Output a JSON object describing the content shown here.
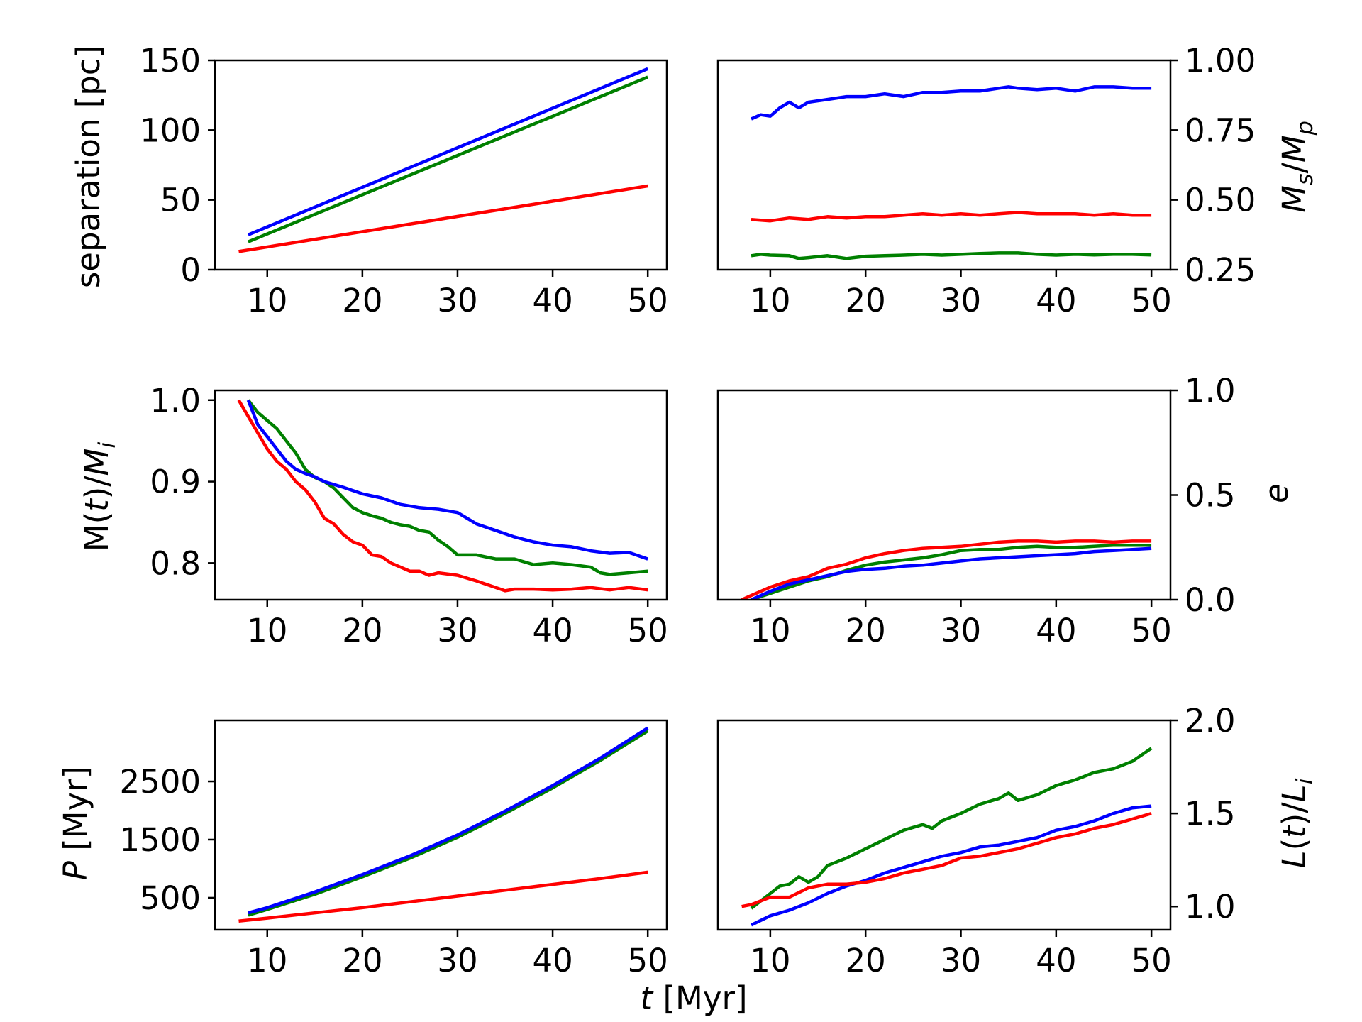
{
  "chart_data": [
    {
      "id": "separation",
      "type": "line",
      "ylabel": "separation [pc]",
      "ylabel_side": "left",
      "xlim": [
        4.5,
        52
      ],
      "ylim": [
        0,
        150
      ],
      "xticks": [
        10,
        20,
        30,
        40,
        50
      ],
      "xtick_labels": [
        "10",
        "20",
        "30",
        "40",
        "50"
      ],
      "yticks": [
        0,
        50,
        100,
        150
      ],
      "ytick_labels": [
        "0",
        "50",
        "100",
        "150"
      ],
      "series": [
        {
          "name": "red",
          "color": "#ff0000",
          "x": [
            7,
            50
          ],
          "y": [
            13,
            60
          ]
        },
        {
          "name": "green",
          "color": "#008000",
          "x": [
            8,
            50
          ],
          "y": [
            20,
            138
          ]
        },
        {
          "name": "blue",
          "color": "#0000ff",
          "x": [
            8,
            50
          ],
          "y": [
            25,
            144
          ]
        }
      ]
    },
    {
      "id": "mass-ratio",
      "type": "line",
      "ylabel": "M_s/M_p",
      "ylabel_side": "right",
      "xlim": [
        4.5,
        52
      ],
      "ylim": [
        0.25,
        1.0
      ],
      "xticks": [
        10,
        20,
        30,
        40,
        50
      ],
      "xtick_labels": [
        "10",
        "20",
        "30",
        "40",
        "50"
      ],
      "yticks": [
        0.25,
        0.5,
        0.75,
        1.0
      ],
      "ytick_labels": [
        "0.25",
        "0.50",
        "0.75",
        "1.00"
      ],
      "series": [
        {
          "name": "blue",
          "color": "#0000ff",
          "x": [
            8,
            9,
            10,
            11,
            12,
            13,
            14,
            16,
            18,
            20,
            22,
            24,
            26,
            28,
            30,
            32,
            34,
            35,
            36,
            38,
            40,
            42,
            44,
            46,
            48,
            50
          ],
          "y": [
            0.79,
            0.805,
            0.8,
            0.83,
            0.85,
            0.83,
            0.85,
            0.86,
            0.87,
            0.87,
            0.88,
            0.87,
            0.885,
            0.885,
            0.89,
            0.89,
            0.9,
            0.905,
            0.9,
            0.895,
            0.9,
            0.89,
            0.905,
            0.905,
            0.9,
            0.9
          ]
        },
        {
          "name": "red",
          "color": "#ff0000",
          "x": [
            8,
            10,
            12,
            14,
            16,
            18,
            20,
            22,
            24,
            26,
            28,
            30,
            32,
            34,
            36,
            38,
            40,
            42,
            44,
            46,
            48,
            50
          ],
          "y": [
            0.43,
            0.425,
            0.435,
            0.43,
            0.44,
            0.435,
            0.44,
            0.44,
            0.445,
            0.45,
            0.445,
            0.45,
            0.445,
            0.45,
            0.455,
            0.45,
            0.45,
            0.45,
            0.445,
            0.45,
            0.445,
            0.445
          ]
        },
        {
          "name": "green",
          "color": "#008000",
          "x": [
            8,
            9,
            10,
            12,
            13,
            14,
            16,
            18,
            20,
            22,
            24,
            26,
            28,
            30,
            32,
            34,
            36,
            38,
            40,
            42,
            44,
            46,
            48,
            50
          ],
          "y": [
            0.3,
            0.305,
            0.302,
            0.3,
            0.29,
            0.293,
            0.3,
            0.29,
            0.298,
            0.3,
            0.302,
            0.305,
            0.302,
            0.305,
            0.308,
            0.31,
            0.31,
            0.305,
            0.302,
            0.305,
            0.303,
            0.305,
            0.305,
            0.303
          ]
        }
      ]
    },
    {
      "id": "mass-loss",
      "type": "line",
      "ylabel": "M(t)/M_i",
      "ylabel_side": "left",
      "xlim": [
        4.5,
        52
      ],
      "ylim": [
        0.755,
        1.012
      ],
      "xticks": [
        10,
        20,
        30,
        40,
        50
      ],
      "xtick_labels": [
        "10",
        "20",
        "30",
        "40",
        "50"
      ],
      "yticks": [
        0.8,
        0.9,
        1.0
      ],
      "ytick_labels": [
        "0.8",
        "0.9",
        "1.0"
      ],
      "series": [
        {
          "name": "red",
          "color": "#ff0000",
          "x": [
            7,
            8,
            9,
            10,
            11,
            12,
            13,
            14,
            15,
            16,
            17,
            18,
            19,
            20,
            21,
            22,
            23,
            24,
            25,
            26,
            27,
            28,
            30,
            32,
            34,
            35,
            36,
            38,
            40,
            42,
            44,
            46,
            48,
            50
          ],
          "y": [
            1.0,
            0.98,
            0.96,
            0.94,
            0.925,
            0.915,
            0.9,
            0.89,
            0.875,
            0.855,
            0.848,
            0.835,
            0.826,
            0.822,
            0.81,
            0.808,
            0.8,
            0.795,
            0.79,
            0.79,
            0.785,
            0.788,
            0.785,
            0.778,
            0.77,
            0.766,
            0.768,
            0.768,
            0.767,
            0.768,
            0.77,
            0.767,
            0.77,
            0.767
          ]
        },
        {
          "name": "green",
          "color": "#008000",
          "x": [
            8,
            9,
            10,
            11,
            12,
            13,
            14,
            15,
            16,
            17,
            18,
            19,
            20,
            21,
            22,
            23,
            24,
            25,
            26,
            27,
            28,
            29,
            30,
            32,
            34,
            36,
            38,
            40,
            42,
            44,
            45,
            46,
            48,
            50
          ],
          "y": [
            1.0,
            0.985,
            0.975,
            0.965,
            0.95,
            0.935,
            0.915,
            0.905,
            0.9,
            0.892,
            0.88,
            0.868,
            0.862,
            0.858,
            0.855,
            0.85,
            0.847,
            0.845,
            0.84,
            0.838,
            0.828,
            0.82,
            0.81,
            0.81,
            0.805,
            0.805,
            0.798,
            0.8,
            0.798,
            0.795,
            0.788,
            0.786,
            0.788,
            0.79
          ]
        },
        {
          "name": "blue",
          "color": "#0000ff",
          "x": [
            8,
            9,
            10,
            11,
            12,
            13,
            14,
            15,
            16,
            18,
            20,
            22,
            24,
            26,
            28,
            30,
            32,
            34,
            36,
            38,
            40,
            42,
            44,
            46,
            48,
            50
          ],
          "y": [
            1.0,
            0.97,
            0.955,
            0.94,
            0.925,
            0.915,
            0.91,
            0.906,
            0.9,
            0.893,
            0.885,
            0.88,
            0.872,
            0.868,
            0.866,
            0.862,
            0.848,
            0.84,
            0.832,
            0.826,
            0.822,
            0.82,
            0.815,
            0.812,
            0.813,
            0.805
          ]
        }
      ]
    },
    {
      "id": "eccentricity",
      "type": "line",
      "ylabel": "e",
      "ylabel_side": "right",
      "xlim": [
        4.5,
        52
      ],
      "ylim": [
        0.0,
        1.0
      ],
      "xticks": [
        10,
        20,
        30,
        40,
        50
      ],
      "xtick_labels": [
        "10",
        "20",
        "30",
        "40",
        "50"
      ],
      "yticks": [
        0.0,
        0.5,
        1.0
      ],
      "ytick_labels": [
        "0.0",
        "0.5",
        "1.0"
      ],
      "series": [
        {
          "name": "red",
          "color": "#ff0000",
          "x": [
            7,
            8,
            10,
            12,
            14,
            16,
            18,
            20,
            22,
            24,
            26,
            28,
            30,
            32,
            34,
            36,
            38,
            40,
            42,
            44,
            46,
            48,
            50
          ],
          "y": [
            0.0,
            0.02,
            0.06,
            0.09,
            0.11,
            0.15,
            0.17,
            0.2,
            0.22,
            0.235,
            0.245,
            0.25,
            0.255,
            0.265,
            0.275,
            0.28,
            0.28,
            0.275,
            0.28,
            0.28,
            0.275,
            0.28,
            0.28
          ]
        },
        {
          "name": "green",
          "color": "#008000",
          "x": [
            8,
            10,
            12,
            14,
            16,
            18,
            20,
            22,
            24,
            26,
            28,
            30,
            32,
            34,
            36,
            38,
            40,
            42,
            44,
            46,
            48,
            50
          ],
          "y": [
            0.0,
            0.03,
            0.06,
            0.09,
            0.11,
            0.14,
            0.165,
            0.18,
            0.19,
            0.2,
            0.215,
            0.235,
            0.24,
            0.24,
            0.25,
            0.255,
            0.25,
            0.25,
            0.255,
            0.26,
            0.26,
            0.26
          ]
        },
        {
          "name": "blue",
          "color": "#0000ff",
          "x": [
            8,
            10,
            12,
            14,
            16,
            18,
            20,
            22,
            24,
            26,
            28,
            30,
            32,
            34,
            36,
            38,
            40,
            42,
            44,
            46,
            48,
            50
          ],
          "y": [
            0.0,
            0.04,
            0.075,
            0.095,
            0.115,
            0.135,
            0.145,
            0.15,
            0.16,
            0.165,
            0.175,
            0.185,
            0.195,
            0.2,
            0.205,
            0.21,
            0.215,
            0.22,
            0.23,
            0.235,
            0.24,
            0.245
          ]
        }
      ]
    },
    {
      "id": "period",
      "type": "line",
      "ylabel": "P [Myr]",
      "ylabel_side": "left",
      "xlim": [
        4.5,
        52
      ],
      "ylim": [
        -50,
        3550
      ],
      "xticks": [
        10,
        20,
        30,
        40,
        50
      ],
      "xtick_labels": [
        "10",
        "20",
        "30",
        "40",
        "50"
      ],
      "yticks": [
        500,
        1500,
        2500
      ],
      "ytick_labels": [
        "500",
        "1500",
        "2500"
      ],
      "series": [
        {
          "name": "red",
          "color": "#ff0000",
          "x": [
            7,
            10,
            15,
            20,
            25,
            30,
            35,
            40,
            45,
            50
          ],
          "y": [
            100,
            150,
            240,
            330,
            430,
            530,
            630,
            730,
            830,
            940
          ]
        },
        {
          "name": "green",
          "color": "#008000",
          "x": [
            8,
            10,
            15,
            20,
            25,
            30,
            35,
            40,
            45,
            50
          ],
          "y": [
            200,
            300,
            560,
            860,
            1180,
            1540,
            1950,
            2390,
            2860,
            3370
          ]
        },
        {
          "name": "blue",
          "color": "#0000ff",
          "x": [
            8,
            10,
            15,
            20,
            25,
            30,
            35,
            40,
            45,
            50
          ],
          "y": [
            240,
            330,
            600,
            900,
            1220,
            1580,
            1990,
            2430,
            2900,
            3420
          ]
        }
      ]
    },
    {
      "id": "angular-momentum",
      "type": "line",
      "ylabel": "L(t)/L_i",
      "ylabel_side": "right",
      "xlim": [
        4.5,
        52
      ],
      "ylim": [
        0.875,
        2.0
      ],
      "xticks": [
        10,
        20,
        30,
        40,
        50
      ],
      "xtick_labels": [
        "10",
        "20",
        "30",
        "40",
        "50"
      ],
      "yticks": [
        1.0,
        1.5,
        2.0
      ],
      "ytick_labels": [
        "1.0",
        "1.5",
        "2.0"
      ],
      "series": [
        {
          "name": "green",
          "color": "#008000",
          "x": [
            8,
            10,
            11,
            12,
            13,
            14,
            15,
            16,
            17,
            18,
            20,
            22,
            24,
            26,
            27,
            28,
            30,
            32,
            34,
            35,
            36,
            38,
            40,
            42,
            44,
            46,
            48,
            50
          ],
          "y": [
            0.99,
            1.07,
            1.11,
            1.12,
            1.16,
            1.13,
            1.16,
            1.22,
            1.24,
            1.26,
            1.31,
            1.36,
            1.41,
            1.44,
            1.42,
            1.46,
            1.5,
            1.55,
            1.58,
            1.61,
            1.57,
            1.6,
            1.65,
            1.68,
            1.72,
            1.74,
            1.78,
            1.85
          ]
        },
        {
          "name": "blue",
          "color": "#0000ff",
          "x": [
            8,
            10,
            12,
            14,
            16,
            18,
            20,
            22,
            24,
            26,
            28,
            30,
            32,
            34,
            36,
            38,
            40,
            42,
            44,
            46,
            48,
            50
          ],
          "y": [
            0.9,
            0.95,
            0.98,
            1.02,
            1.07,
            1.11,
            1.14,
            1.18,
            1.21,
            1.24,
            1.27,
            1.29,
            1.32,
            1.33,
            1.35,
            1.37,
            1.41,
            1.43,
            1.46,
            1.5,
            1.53,
            1.54
          ]
        },
        {
          "name": "red",
          "color": "#ff0000",
          "x": [
            7,
            8,
            10,
            12,
            14,
            16,
            18,
            20,
            22,
            24,
            26,
            28,
            30,
            32,
            34,
            36,
            38,
            40,
            42,
            44,
            46,
            48,
            50
          ],
          "y": [
            1.0,
            1.01,
            1.05,
            1.05,
            1.1,
            1.12,
            1.12,
            1.13,
            1.15,
            1.18,
            1.2,
            1.22,
            1.26,
            1.27,
            1.29,
            1.31,
            1.34,
            1.37,
            1.39,
            1.42,
            1.44,
            1.47,
            1.5
          ]
        }
      ]
    }
  ],
  "shared": {
    "xlabel_italic": "t",
    "xlabel_unit": " [Myr]"
  }
}
